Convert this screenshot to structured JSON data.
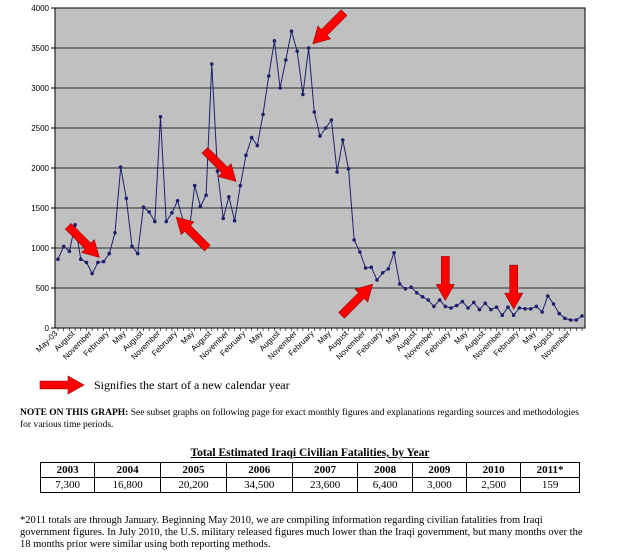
{
  "chart_data": {
    "type": "line",
    "y_ticks": [
      0,
      500,
      1000,
      1500,
      2000,
      2500,
      3000,
      3500,
      4000
    ],
    "ylim": [
      0,
      4000
    ],
    "grid": true,
    "x_labels": [
      "May-03",
      "August",
      "November",
      "February",
      "May",
      "August",
      "November",
      "February",
      "May",
      "August",
      "November",
      "February",
      "May",
      "August",
      "November",
      "February",
      "May",
      "August",
      "November",
      "February",
      "May",
      "August",
      "November",
      "February",
      "May",
      "August",
      "November",
      "February",
      "May",
      "August",
      "November"
    ],
    "series": [
      {
        "color": "#1f1f6e",
        "values": [
          860,
          1020,
          960,
          1290,
          860,
          820,
          680,
          820,
          830,
          930,
          1190,
          2010,
          1620,
          1020,
          930,
          1510,
          1450,
          1330,
          2640,
          1330,
          1440,
          1590,
          1330,
          1190,
          1780,
          1520,
          1660,
          3300,
          1960,
          1370,
          1640,
          1340,
          1780,
          2160,
          2380,
          2280,
          2670,
          3150,
          3590,
          3000,
          3350,
          3710,
          3460,
          2920,
          3500,
          2700,
          2400,
          2500,
          2600,
          1950,
          2350,
          1990,
          1100,
          950,
          750,
          760,
          600,
          690,
          740,
          940,
          550,
          490,
          510,
          440,
          390,
          350,
          270,
          350,
          270,
          250,
          280,
          330,
          250,
          320,
          230,
          310,
          230,
          260,
          160,
          260,
          160,
          250,
          240,
          240,
          270,
          200,
          400,
          300,
          180,
          120,
          100,
          100,
          150
        ]
      }
    ],
    "arrows": [
      {
        "at_index": 8,
        "direction": "down-right"
      },
      {
        "at_index": 20,
        "direction": "up-left"
      },
      {
        "at_index": 32,
        "direction": "down-right"
      },
      {
        "at_index": 44,
        "direction": "down-left"
      },
      {
        "at_index": 56,
        "direction": "up-right"
      },
      {
        "at_index": 68,
        "direction": "down"
      },
      {
        "at_index": 80,
        "direction": "down"
      }
    ],
    "arrow_color": "#ff0000"
  },
  "legend": {
    "text": "Signifies the start of a new calendar year"
  },
  "note": {
    "label": "NOTE ON THIS GRAPH:",
    "text": " See subset graphs on following page for exact monthly figures and explanations regarding sources and methodologies for various time periods."
  },
  "table": {
    "title": "Total Estimated Iraqi Civilian Fatalities, by Year",
    "years": [
      "2003",
      "2004",
      "2005",
      "2006",
      "2007",
      "2008",
      "2009",
      "2010",
      "2011*"
    ],
    "values": [
      "7,300",
      "16,800",
      "20,200",
      "34,500",
      "23,600",
      "6,400",
      "3,000",
      "2,500",
      "159"
    ]
  },
  "footnote": "*2011 totals are through January. Beginning May 2010, we are compiling information regarding civilian fatalities from Iraqi government figures. In July 2010, the U.S. military released figures much lower than the Iraqi government, but many months over the 18 months prior were similar using both reporting methods."
}
